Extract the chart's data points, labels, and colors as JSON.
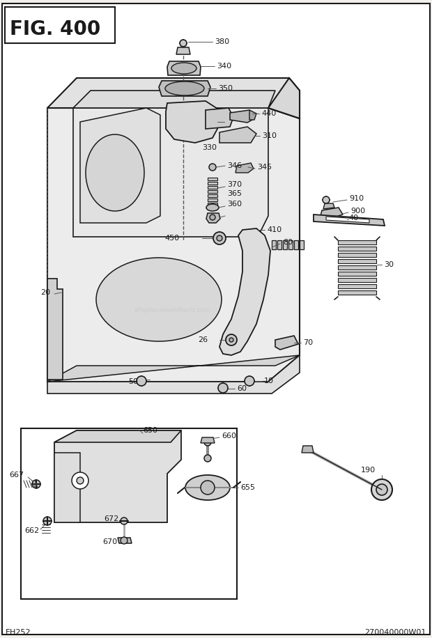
{
  "title": "FIG. 400",
  "bottom_left": "EH252",
  "bottom_right": "270040000W01",
  "bg_color": "#f2f0ed",
  "line_color": "#1a1a1a",
  "fig_width": 6.2,
  "fig_height": 9.16,
  "dpi": 100
}
